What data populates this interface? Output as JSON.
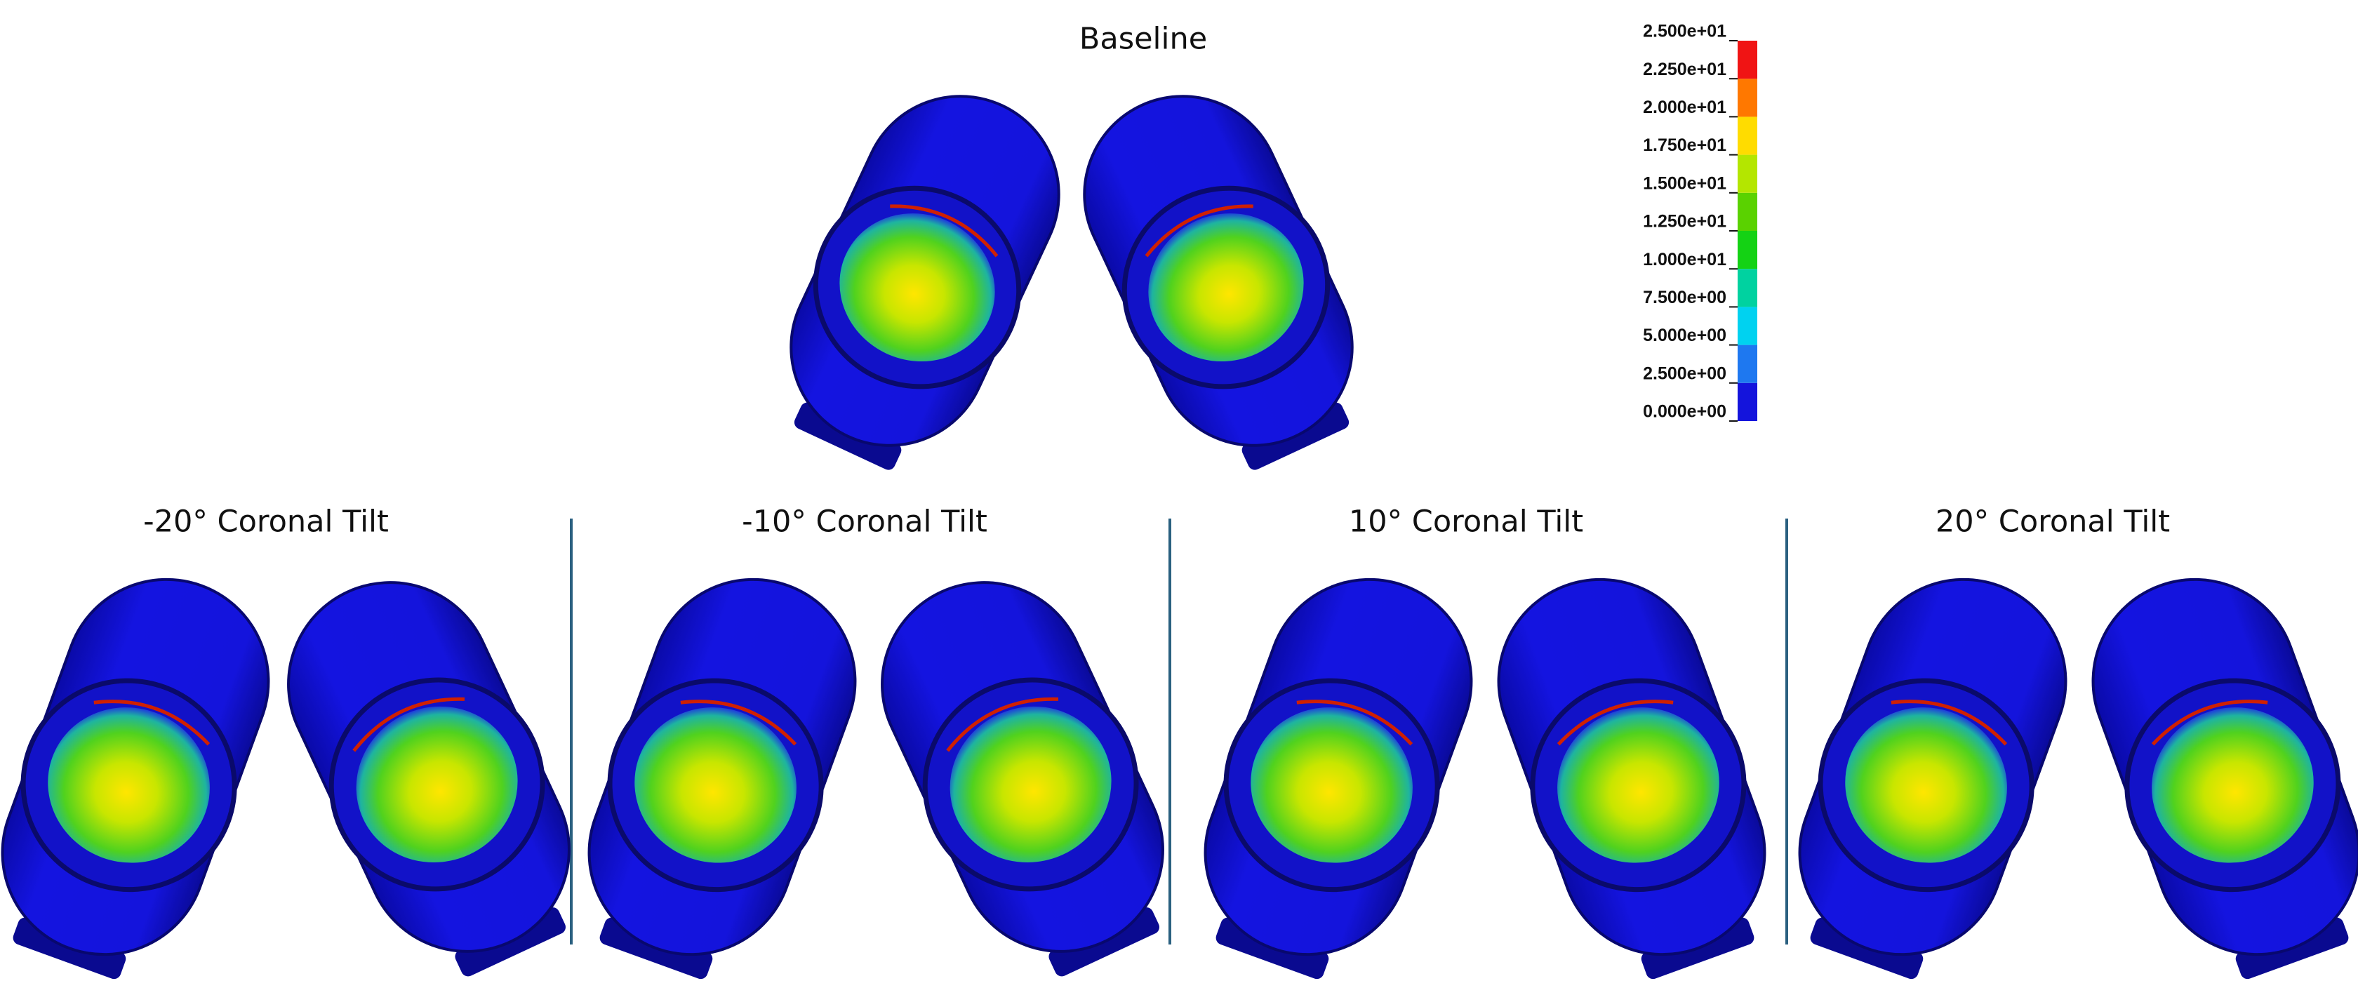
{
  "baseline": {
    "title": "Baseline"
  },
  "panels": [
    {
      "title": "-20° Coronal Tilt"
    },
    {
      "title": "-10° Coronal Tilt"
    },
    {
      "title": "10° Coronal Tilt"
    },
    {
      "title": "20° Coronal Tilt"
    }
  ],
  "colorbar": {
    "ticks": [
      {
        "value": 0,
        "label": "0.000e+00"
      },
      {
        "value": 2.5,
        "label": "2.500e+00"
      },
      {
        "value": 5,
        "label": "5.000e+00"
      },
      {
        "value": 7.5,
        "label": "7.500e+00"
      },
      {
        "value": 10,
        "label": "1.000e+01"
      },
      {
        "value": 12.5,
        "label": "1.250e+01"
      },
      {
        "value": 15,
        "label": "1.500e+01"
      },
      {
        "value": 17.5,
        "label": "1.750e+01"
      },
      {
        "value": 20,
        "label": "2.000e+01"
      },
      {
        "value": 22.5,
        "label": "2.250e+01"
      },
      {
        "value": 25,
        "label": "2.500e+01"
      }
    ],
    "colors": [
      "#1414dc",
      "#1e78f0",
      "#00d2f0",
      "#00d2a0",
      "#14d214",
      "#5ad200",
      "#b4e600",
      "#ffdc00",
      "#ff7800",
      "#f01414"
    ]
  }
}
